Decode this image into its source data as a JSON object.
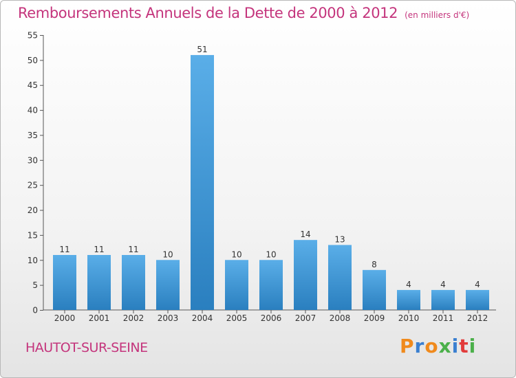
{
  "title": "Remboursements Annuels de la Dette de 2000 à 2012",
  "subtitle": "(en milliers d'€)",
  "commune": "HAUTOT-SUR-SEINE",
  "logo": {
    "letters": [
      "P",
      "r",
      "o",
      "x",
      "i",
      "t",
      "i"
    ],
    "colors": [
      "#f08a1c",
      "#3a7fd0",
      "#f08a1c",
      "#4bb04a",
      "#3a7fd0",
      "#e23b3b",
      "#4bb04a"
    ]
  },
  "colors": {
    "bar_top": "#5aaee8",
    "bar_bottom": "#2a7fbf",
    "title": "#c4347c"
  },
  "chart_data": {
    "type": "bar",
    "title": "Remboursements Annuels de la Dette de 2000 à 2012",
    "subtitle": "(en milliers d'€)",
    "categories": [
      "2000",
      "2001",
      "2002",
      "2003",
      "2004",
      "2005",
      "2006",
      "2007",
      "2008",
      "2009",
      "2010",
      "2011",
      "2012"
    ],
    "values": [
      11,
      11,
      11,
      10,
      51,
      10,
      10,
      14,
      13,
      8,
      4,
      4,
      4
    ],
    "ylim": [
      0,
      55
    ],
    "yticks": [
      0,
      5,
      10,
      15,
      20,
      25,
      30,
      35,
      40,
      45,
      50,
      55
    ],
    "grid": false,
    "xlabel": "",
    "ylabel": ""
  }
}
